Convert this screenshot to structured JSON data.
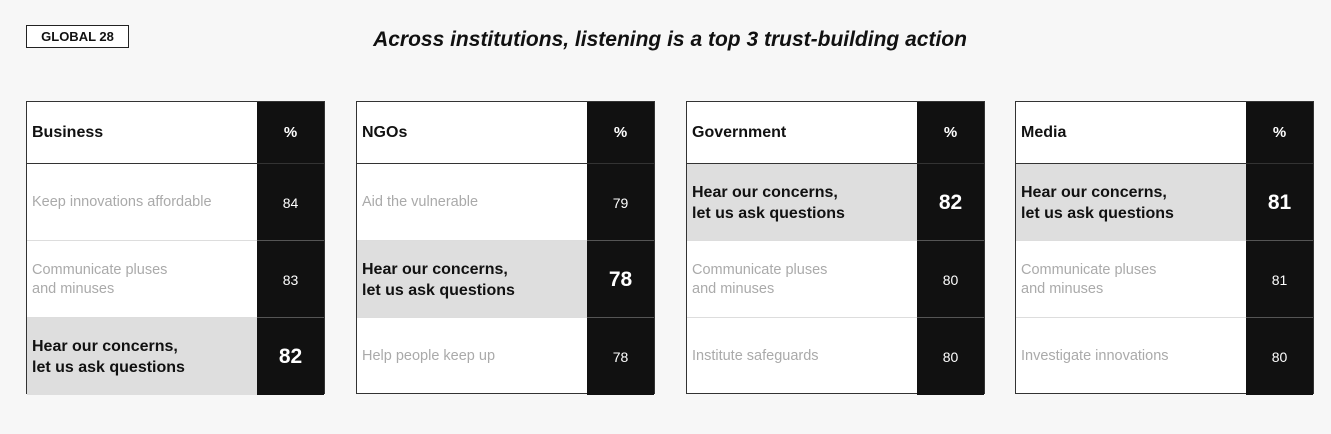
{
  "badge": "GLOBAL 28",
  "title": "Across institutions, listening is a top 3 trust-building action",
  "chart_data": {
    "type": "table",
    "title": "Across institutions, listening is a top 3 trust-building action",
    "value_header": "%",
    "panels": [
      {
        "name": "Business",
        "rows": [
          {
            "label": "Keep innovations affordable",
            "value": 84,
            "highlight": false
          },
          {
            "label": "Communicate pluses\nand minuses",
            "value": 83,
            "highlight": false
          },
          {
            "label": "Hear our concerns,\nlet us ask questions",
            "value": 82,
            "highlight": true
          }
        ]
      },
      {
        "name": "NGOs",
        "rows": [
          {
            "label": "Aid the vulnerable",
            "value": 79,
            "highlight": false
          },
          {
            "label": "Hear our concerns,\nlet us ask questions",
            "value": 78,
            "highlight": true
          },
          {
            "label": "Help people keep up",
            "value": 78,
            "highlight": false
          }
        ]
      },
      {
        "name": "Government",
        "rows": [
          {
            "label": "Hear our concerns,\nlet us ask questions",
            "value": 82,
            "highlight": true
          },
          {
            "label": "Communicate pluses\nand minuses",
            "value": 80,
            "highlight": false
          },
          {
            "label": "Institute safeguards",
            "value": 80,
            "highlight": false
          }
        ]
      },
      {
        "name": "Media",
        "rows": [
          {
            "label": "Hear our concerns,\nlet us ask questions",
            "value": 81,
            "highlight": true
          },
          {
            "label": "Communicate pluses\nand minuses",
            "value": 81,
            "highlight": false
          },
          {
            "label": "Investigate innovations",
            "value": 80,
            "highlight": false
          }
        ]
      }
    ]
  }
}
